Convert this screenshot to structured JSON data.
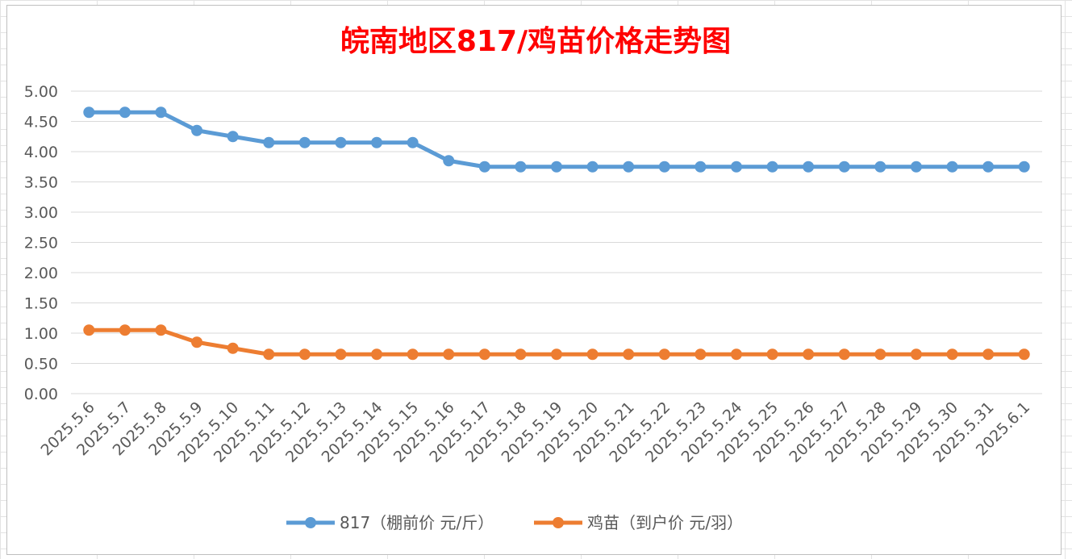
{
  "chart_data": {
    "type": "line",
    "title": "皖南地区817/鸡苗价格走势图",
    "xlabel": "",
    "ylabel": "",
    "ylim": [
      0,
      5
    ],
    "y_ticks": [
      "0.00",
      "0.50",
      "1.00",
      "1.50",
      "2.00",
      "2.50",
      "3.00",
      "3.50",
      "4.00",
      "4.50",
      "5.00"
    ],
    "grid": true,
    "legend_position": "bottom",
    "categories": [
      "2025.5.6",
      "2025.5.7",
      "2025.5.8",
      "2025.5.9",
      "2025.5.10",
      "2025.5.11",
      "2025.5.12",
      "2025.5.13",
      "2025.5.14",
      "2025.5.15",
      "2025.5.16",
      "2025.5.17",
      "2025.5.18",
      "2025.5.19",
      "2025.5.20",
      "2025.5.21",
      "2025.5.22",
      "2025.5.23",
      "2025.5.24",
      "2025.5.25",
      "2025.5.26",
      "2025.5.27",
      "2025.5.28",
      "2025.5.29",
      "2025.5.30",
      "2025.5.31",
      "2025.6.1"
    ],
    "series": [
      {
        "name": "817（棚前价 元/斤）",
        "color": "#5b9bd5",
        "values": [
          4.65,
          4.65,
          4.65,
          4.35,
          4.25,
          4.15,
          4.15,
          4.15,
          4.15,
          4.15,
          3.85,
          3.75,
          3.75,
          3.75,
          3.75,
          3.75,
          3.75,
          3.75,
          3.75,
          3.75,
          3.75,
          3.75,
          3.75,
          3.75,
          3.75,
          3.75,
          3.75
        ]
      },
      {
        "name": "鸡苗（到户价 元/羽）",
        "color": "#ed7d31",
        "values": [
          1.05,
          1.05,
          1.05,
          0.85,
          0.75,
          0.65,
          0.65,
          0.65,
          0.65,
          0.65,
          0.65,
          0.65,
          0.65,
          0.65,
          0.65,
          0.65,
          0.65,
          0.65,
          0.65,
          0.65,
          0.65,
          0.65,
          0.65,
          0.65,
          0.65,
          0.65,
          0.65
        ]
      }
    ]
  }
}
